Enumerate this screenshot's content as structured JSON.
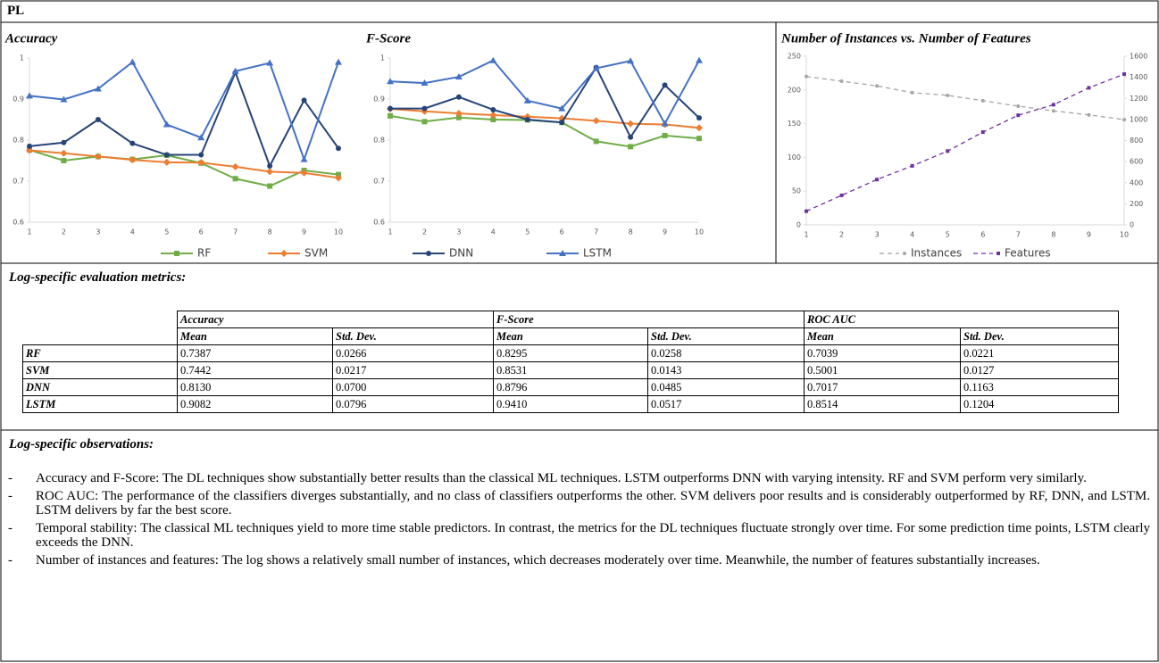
{
  "header": {
    "title": "PL"
  },
  "chart_data": [
    {
      "type": "line",
      "title": "Accuracy",
      "categories": [
        "1",
        "2",
        "3",
        "4",
        "5",
        "6",
        "7",
        "8",
        "9",
        "10"
      ],
      "ylim": [
        0.6,
        1
      ],
      "yticks": [
        0.6,
        0.7,
        0.8,
        0.9,
        1
      ],
      "legend": "bottom",
      "series": [
        {
          "name": "RF",
          "color": "#70ad47",
          "marker": "square",
          "values": [
            0.776,
            0.75,
            0.76,
            0.753,
            0.763,
            0.744,
            0.706,
            0.688,
            0.726,
            0.716
          ]
        },
        {
          "name": "SVM",
          "color": "#ed7d31",
          "marker": "diamond",
          "values": [
            0.775,
            0.768,
            0.76,
            0.752,
            0.746,
            0.745,
            0.735,
            0.723,
            0.72,
            0.708
          ]
        },
        {
          "name": "DNN",
          "color": "#264478",
          "marker": "circle",
          "values": [
            0.785,
            0.794,
            0.85,
            0.792,
            0.764,
            0.764,
            0.965,
            0.737,
            0.897,
            0.78
          ]
        },
        {
          "name": "LSTM",
          "color": "#4472c4",
          "marker": "triangle",
          "values": [
            0.908,
            0.899,
            0.925,
            0.99,
            0.838,
            0.806,
            0.968,
            0.988,
            0.753,
            0.99
          ]
        }
      ]
    },
    {
      "type": "line",
      "title": "F-Score",
      "categories": [
        "1",
        "2",
        "3",
        "4",
        "5",
        "6",
        "7",
        "8",
        "9",
        "10"
      ],
      "ylim": [
        0.6,
        1
      ],
      "yticks": [
        0.6,
        0.7,
        0.8,
        0.9,
        1
      ],
      "series": [
        {
          "color": "#70ad47",
          "marker": "square",
          "values": [
            0.859,
            0.845,
            0.855,
            0.85,
            0.849,
            0.843,
            0.797,
            0.784,
            0.811,
            0.804
          ]
        },
        {
          "color": "#ed7d31",
          "marker": "diamond",
          "values": [
            0.876,
            0.87,
            0.865,
            0.861,
            0.857,
            0.853,
            0.847,
            0.84,
            0.838,
            0.83
          ]
        },
        {
          "color": "#264478",
          "marker": "circle",
          "values": [
            0.877,
            0.877,
            0.905,
            0.874,
            0.85,
            0.843,
            0.977,
            0.807,
            0.934,
            0.854
          ]
        },
        {
          "color": "#4472c4",
          "marker": "triangle",
          "values": [
            0.943,
            0.939,
            0.954,
            0.994,
            0.896,
            0.877,
            0.975,
            0.993,
            0.84,
            0.994
          ]
        }
      ]
    },
    {
      "type": "line",
      "title": "Number of Instances vs. Number of Features",
      "categories": [
        "1",
        "2",
        "3",
        "4",
        "5",
        "6",
        "7",
        "8",
        "9",
        "10"
      ],
      "ylim": [
        0,
        250
      ],
      "yticks": [
        0,
        50,
        100,
        150,
        200,
        250
      ],
      "y2lim": [
        0,
        1600
      ],
      "y2ticks": [
        0,
        200,
        400,
        600,
        800,
        1000,
        1200,
        1400,
        1600
      ],
      "legend": "bottom",
      "series": [
        {
          "name": "Instances",
          "color": "#a5a5a5",
          "marker": "circle",
          "dashed": true,
          "values": [
            220,
            213,
            206,
            196,
            192,
            184,
            176,
            169,
            163,
            156
          ]
        },
        {
          "name": "Features",
          "color": "#7030a0",
          "marker": "square",
          "dashed": true,
          "axis": "y2",
          "values": [
            130,
            280,
            430,
            560,
            700,
            880,
            1040,
            1140,
            1300,
            1430
          ]
        }
      ]
    }
  ],
  "metrics": {
    "title": "Log-specific evaluation metrics:",
    "table": {
      "groups": [
        "Accuracy",
        "F-Score",
        "ROC AUC"
      ],
      "subheaders": [
        "Mean",
        "Std. Dev.",
        "Mean",
        "Std. Dev.",
        "Mean",
        "Std. Dev."
      ],
      "rows": [
        [
          "RF",
          "0.7387",
          "0.0266",
          "0.8295",
          "0.0258",
          "0.7039",
          "0.0221"
        ],
        [
          "SVM",
          "0.7442",
          "0.0217",
          "0.8531",
          "0.0143",
          "0.5001",
          "0.0127"
        ],
        [
          "DNN",
          "0.8130",
          "0.0700",
          "0.8796",
          "0.0485",
          "0.7017",
          "0.1163"
        ],
        [
          "LSTM",
          "0.9082",
          "0.0796",
          "0.9410",
          "0.0517",
          "0.8514",
          "0.1204"
        ]
      ]
    }
  },
  "observations": {
    "title": "Log-specific observations:",
    "items": [
      "Accuracy and F-Score: The DL techniques show substantially better results than the classical ML techniques. LSTM outperforms DNN with varying intensity. RF and SVM perform very similarly.",
      "ROC AUC: The performance of the classifiers diverges substantially, and no class of classifiers outperforms the other. SVM delivers poor results and is considerably outperformed by RF, DNN, and LSTM. LSTM delivers by far the best score.",
      "Temporal stability: The classical ML techniques yield to more time stable predictors. In contrast, the metrics for the DL techniques fluctuate strongly over time. For some prediction time points, LSTM clearly exceeds the DNN.",
      "Number of instances and features: The log shows a relatively small number of instances, which decreases moderately over time. Meanwhile, the number of features substantially increases."
    ]
  }
}
